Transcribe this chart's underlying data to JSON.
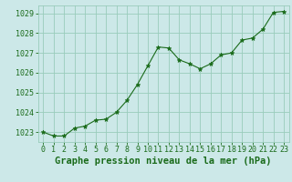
{
  "x": [
    0,
    1,
    2,
    3,
    4,
    5,
    6,
    7,
    8,
    9,
    10,
    11,
    12,
    13,
    14,
    15,
    16,
    17,
    18,
    19,
    20,
    21,
    22,
    23
  ],
  "y": [
    1023.0,
    1022.8,
    1022.8,
    1023.2,
    1023.3,
    1023.6,
    1023.65,
    1024.0,
    1024.6,
    1025.4,
    1026.35,
    1027.3,
    1027.25,
    1026.65,
    1026.45,
    1026.2,
    1026.45,
    1026.9,
    1027.0,
    1027.65,
    1027.75,
    1028.2,
    1029.05,
    1029.1
  ],
  "line_color": "#1a6b1a",
  "marker": "*",
  "marker_size": 3.5,
  "bg_color": "#cce8e8",
  "grid_color": "#99ccbb",
  "title": "Graphe pression niveau de la mer (hPa)",
  "ylim": [
    1022.5,
    1029.4
  ],
  "yticks": [
    1023,
    1024,
    1025,
    1026,
    1027,
    1028,
    1029
  ],
  "xticks": [
    0,
    1,
    2,
    3,
    4,
    5,
    6,
    7,
    8,
    9,
    10,
    11,
    12,
    13,
    14,
    15,
    16,
    17,
    18,
    19,
    20,
    21,
    22,
    23
  ],
  "tick_label_fontsize": 6.0,
  "title_fontsize": 7.5,
  "title_fontweight": "bold"
}
